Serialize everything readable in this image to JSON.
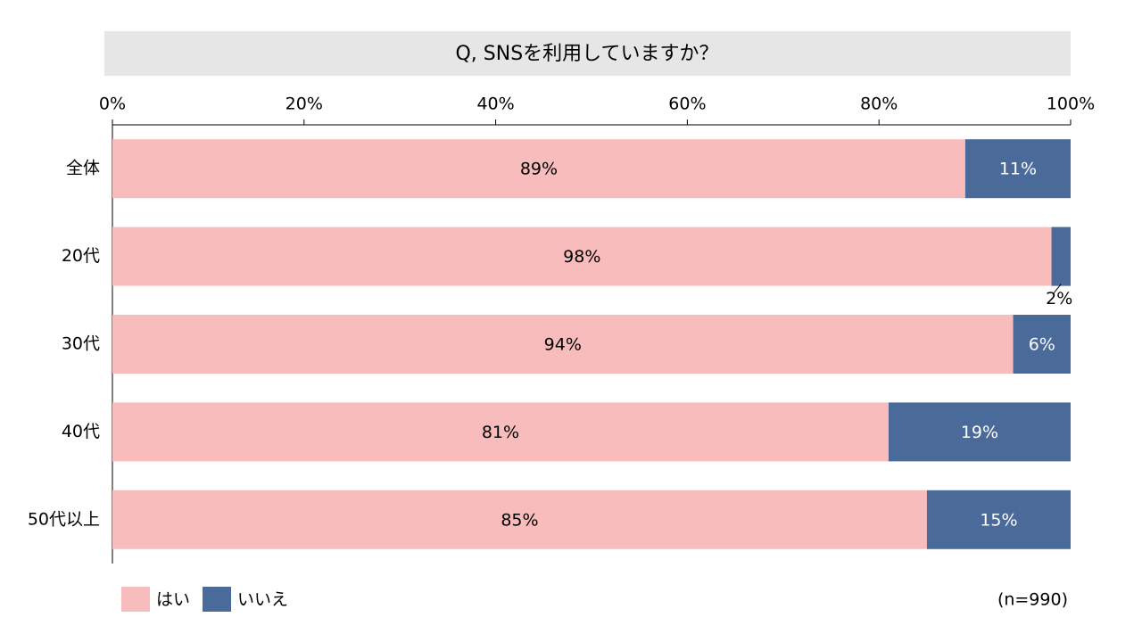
{
  "chart_data": {
    "type": "stacked-bar-horizontal",
    "title": "Q, SNSを利用していますか？",
    "categories": [
      "全体",
      "20代",
      "30代",
      "40代",
      "50代以上"
    ],
    "series": [
      {
        "name": "はい",
        "color": "#f9bcbc",
        "values": [
          89,
          98,
          94,
          81,
          85
        ],
        "value_labels": [
          "89%",
          "98%",
          "94%",
          "81%",
          "85%"
        ]
      },
      {
        "name": "いいえ",
        "color": "#4a6a9a",
        "values": [
          11,
          2,
          6,
          19,
          15
        ],
        "value_labels": [
          "11%",
          "2%",
          "6%",
          "19%",
          "15%"
        ]
      }
    ],
    "xlim": [
      0,
      100
    ],
    "xticks": [
      {
        "value": 0,
        "label": "0%"
      },
      {
        "value": 20,
        "label": "20%"
      },
      {
        "value": 40,
        "label": "40%"
      },
      {
        "value": 60,
        "label": "60%"
      },
      {
        "value": 80,
        "label": "80%"
      },
      {
        "value": 100,
        "label": "100%"
      }
    ],
    "note": "(n=990)",
    "legend": "bottom-left"
  }
}
